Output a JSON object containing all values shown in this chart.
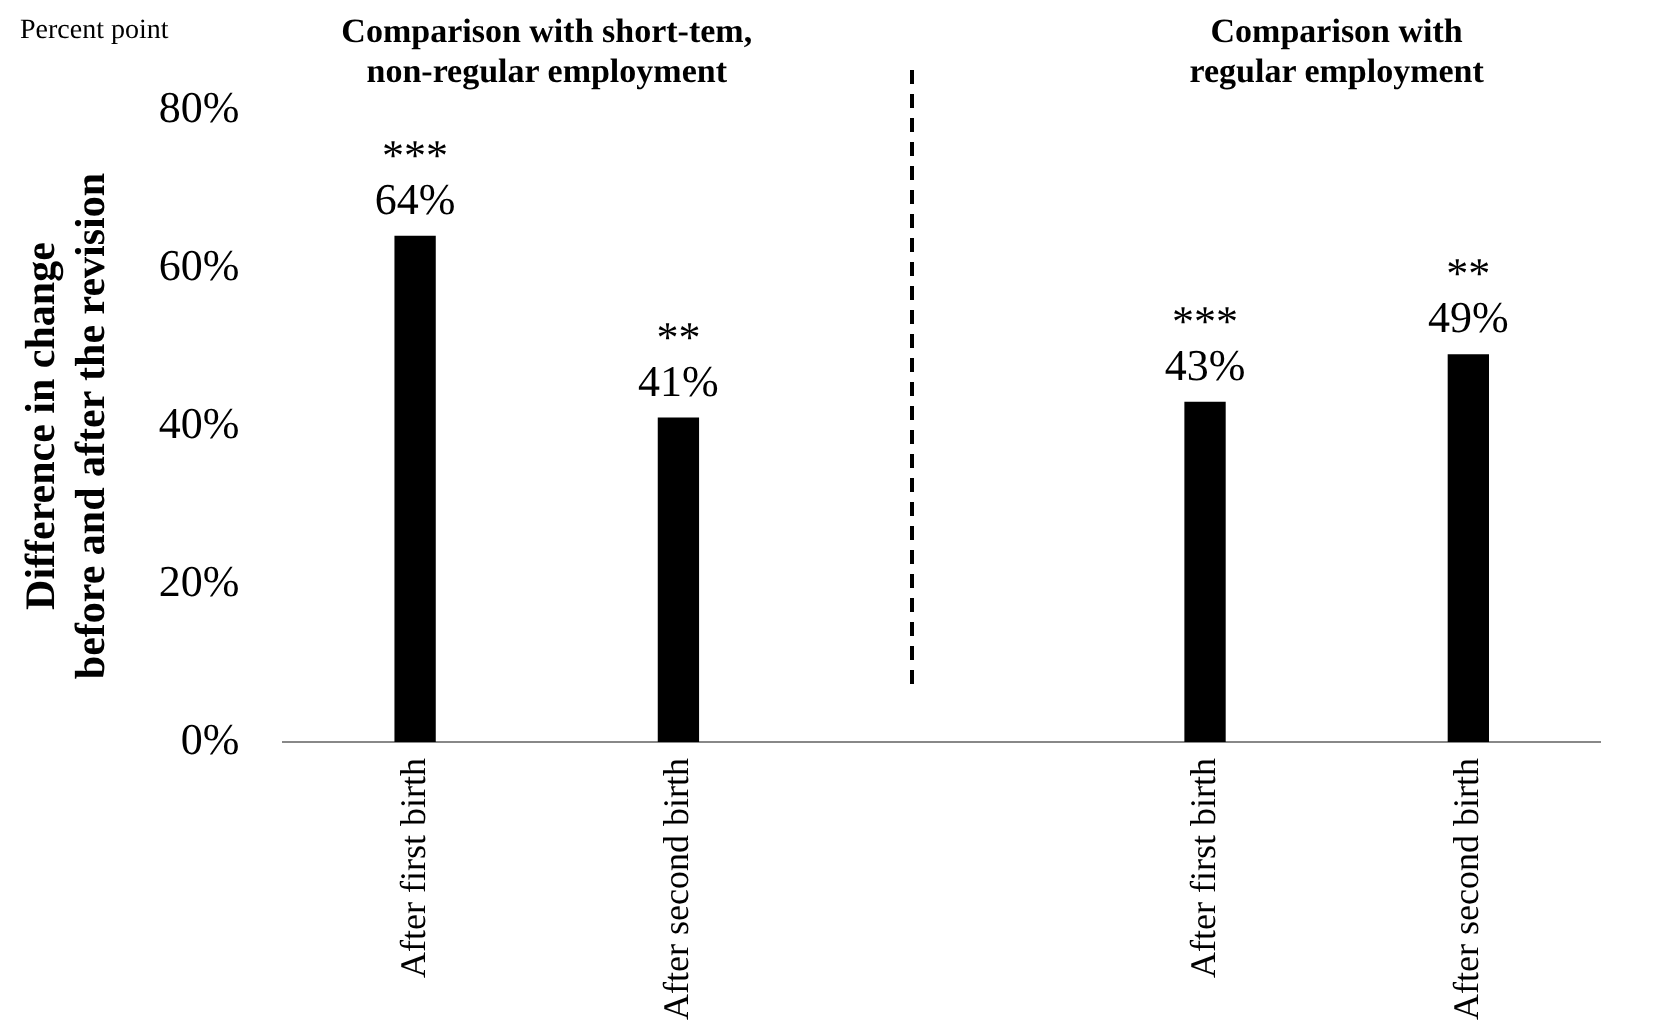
{
  "chart_data": {
    "type": "bar",
    "ylabel": "Difference in change\nbefore and after the revision",
    "annotations": [
      "Percent point",
      "Comparison with short-tem,\nnon-regular employment",
      "Comparison with\nregular employment"
    ],
    "categories": [
      "After first birth",
      "After second birth",
      null,
      "After first birth",
      "After second birth"
    ],
    "values": [
      64,
      41,
      null,
      43,
      49
    ],
    "value_labels": [
      "***\n64%",
      "**\n41%",
      null,
      "***\n43%",
      "**\n49%"
    ],
    "color": "#000000",
    "ylim": [
      0,
      80
    ],
    "yticks": [
      {
        "value": 0,
        "label": "0%"
      },
      {
        "value": 20,
        "label": "20%"
      },
      {
        "value": 40,
        "label": "40%"
      },
      {
        "value": 60,
        "label": "60%"
      },
      {
        "value": 80,
        "label": "80%"
      }
    ],
    "grid": false,
    "legend": false
  }
}
